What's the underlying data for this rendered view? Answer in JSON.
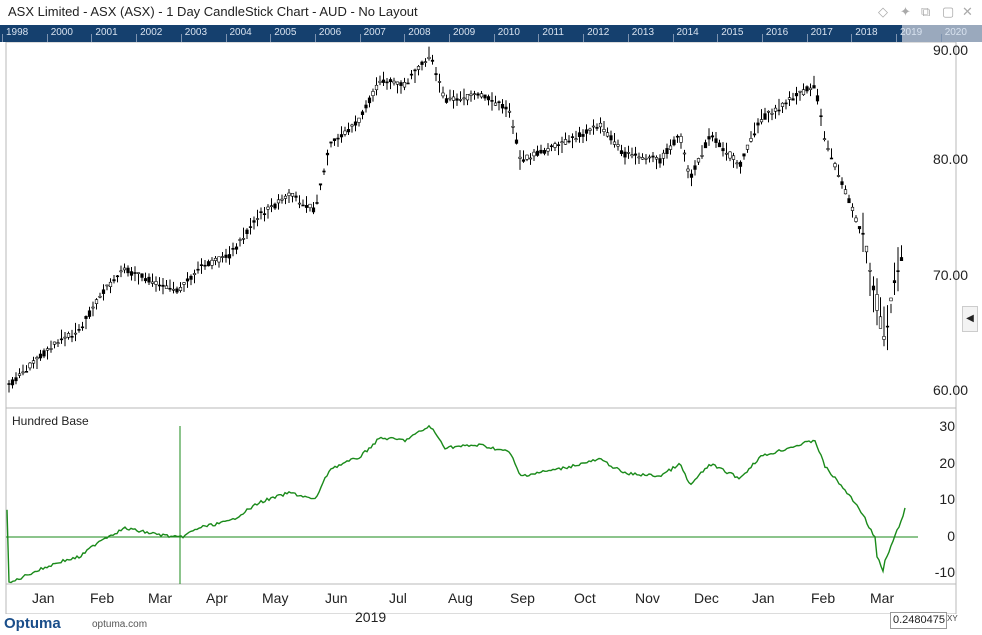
{
  "window": {
    "title": "ASX Limited - ASX (ASX) - 1 Day CandleStick Chart - AUD - No Layout",
    "icons": [
      "diamond-icon",
      "pin-icon",
      "restore-icon",
      "maximize-icon",
      "close-icon"
    ]
  },
  "year_strip": [
    "1998",
    "2000",
    "2001",
    "2002",
    "2003",
    "2004",
    "2005",
    "2006",
    "2007",
    "2008",
    "2009",
    "2010",
    "2011",
    "2012",
    "2013",
    "2014",
    "2015",
    "2016",
    "2017",
    "2018",
    "2019",
    "2020"
  ],
  "price_pane": {
    "axis_labels": [
      "90.00",
      "80.00",
      "70.00",
      "60.00"
    ]
  },
  "indicator_pane": {
    "label": "Hundred Base",
    "axis_labels": [
      "30",
      "20",
      "10",
      "0",
      "-10"
    ]
  },
  "time_axis": {
    "months": [
      "Jan",
      "Feb",
      "Mar",
      "Apr",
      "May",
      "Jun",
      "Jul",
      "Aug",
      "Sep",
      "Oct",
      "Nov",
      "Dec",
      "Jan",
      "Feb",
      "Mar"
    ],
    "year": "2019"
  },
  "footer": {
    "logo": "Optuma",
    "logo_sub": "optuma.com",
    "value_field": "0.2480475",
    "xy_label": "XY"
  },
  "colors": {
    "candle": "#000000",
    "line": "#1a8a1a",
    "strip": "#15406e"
  }
}
